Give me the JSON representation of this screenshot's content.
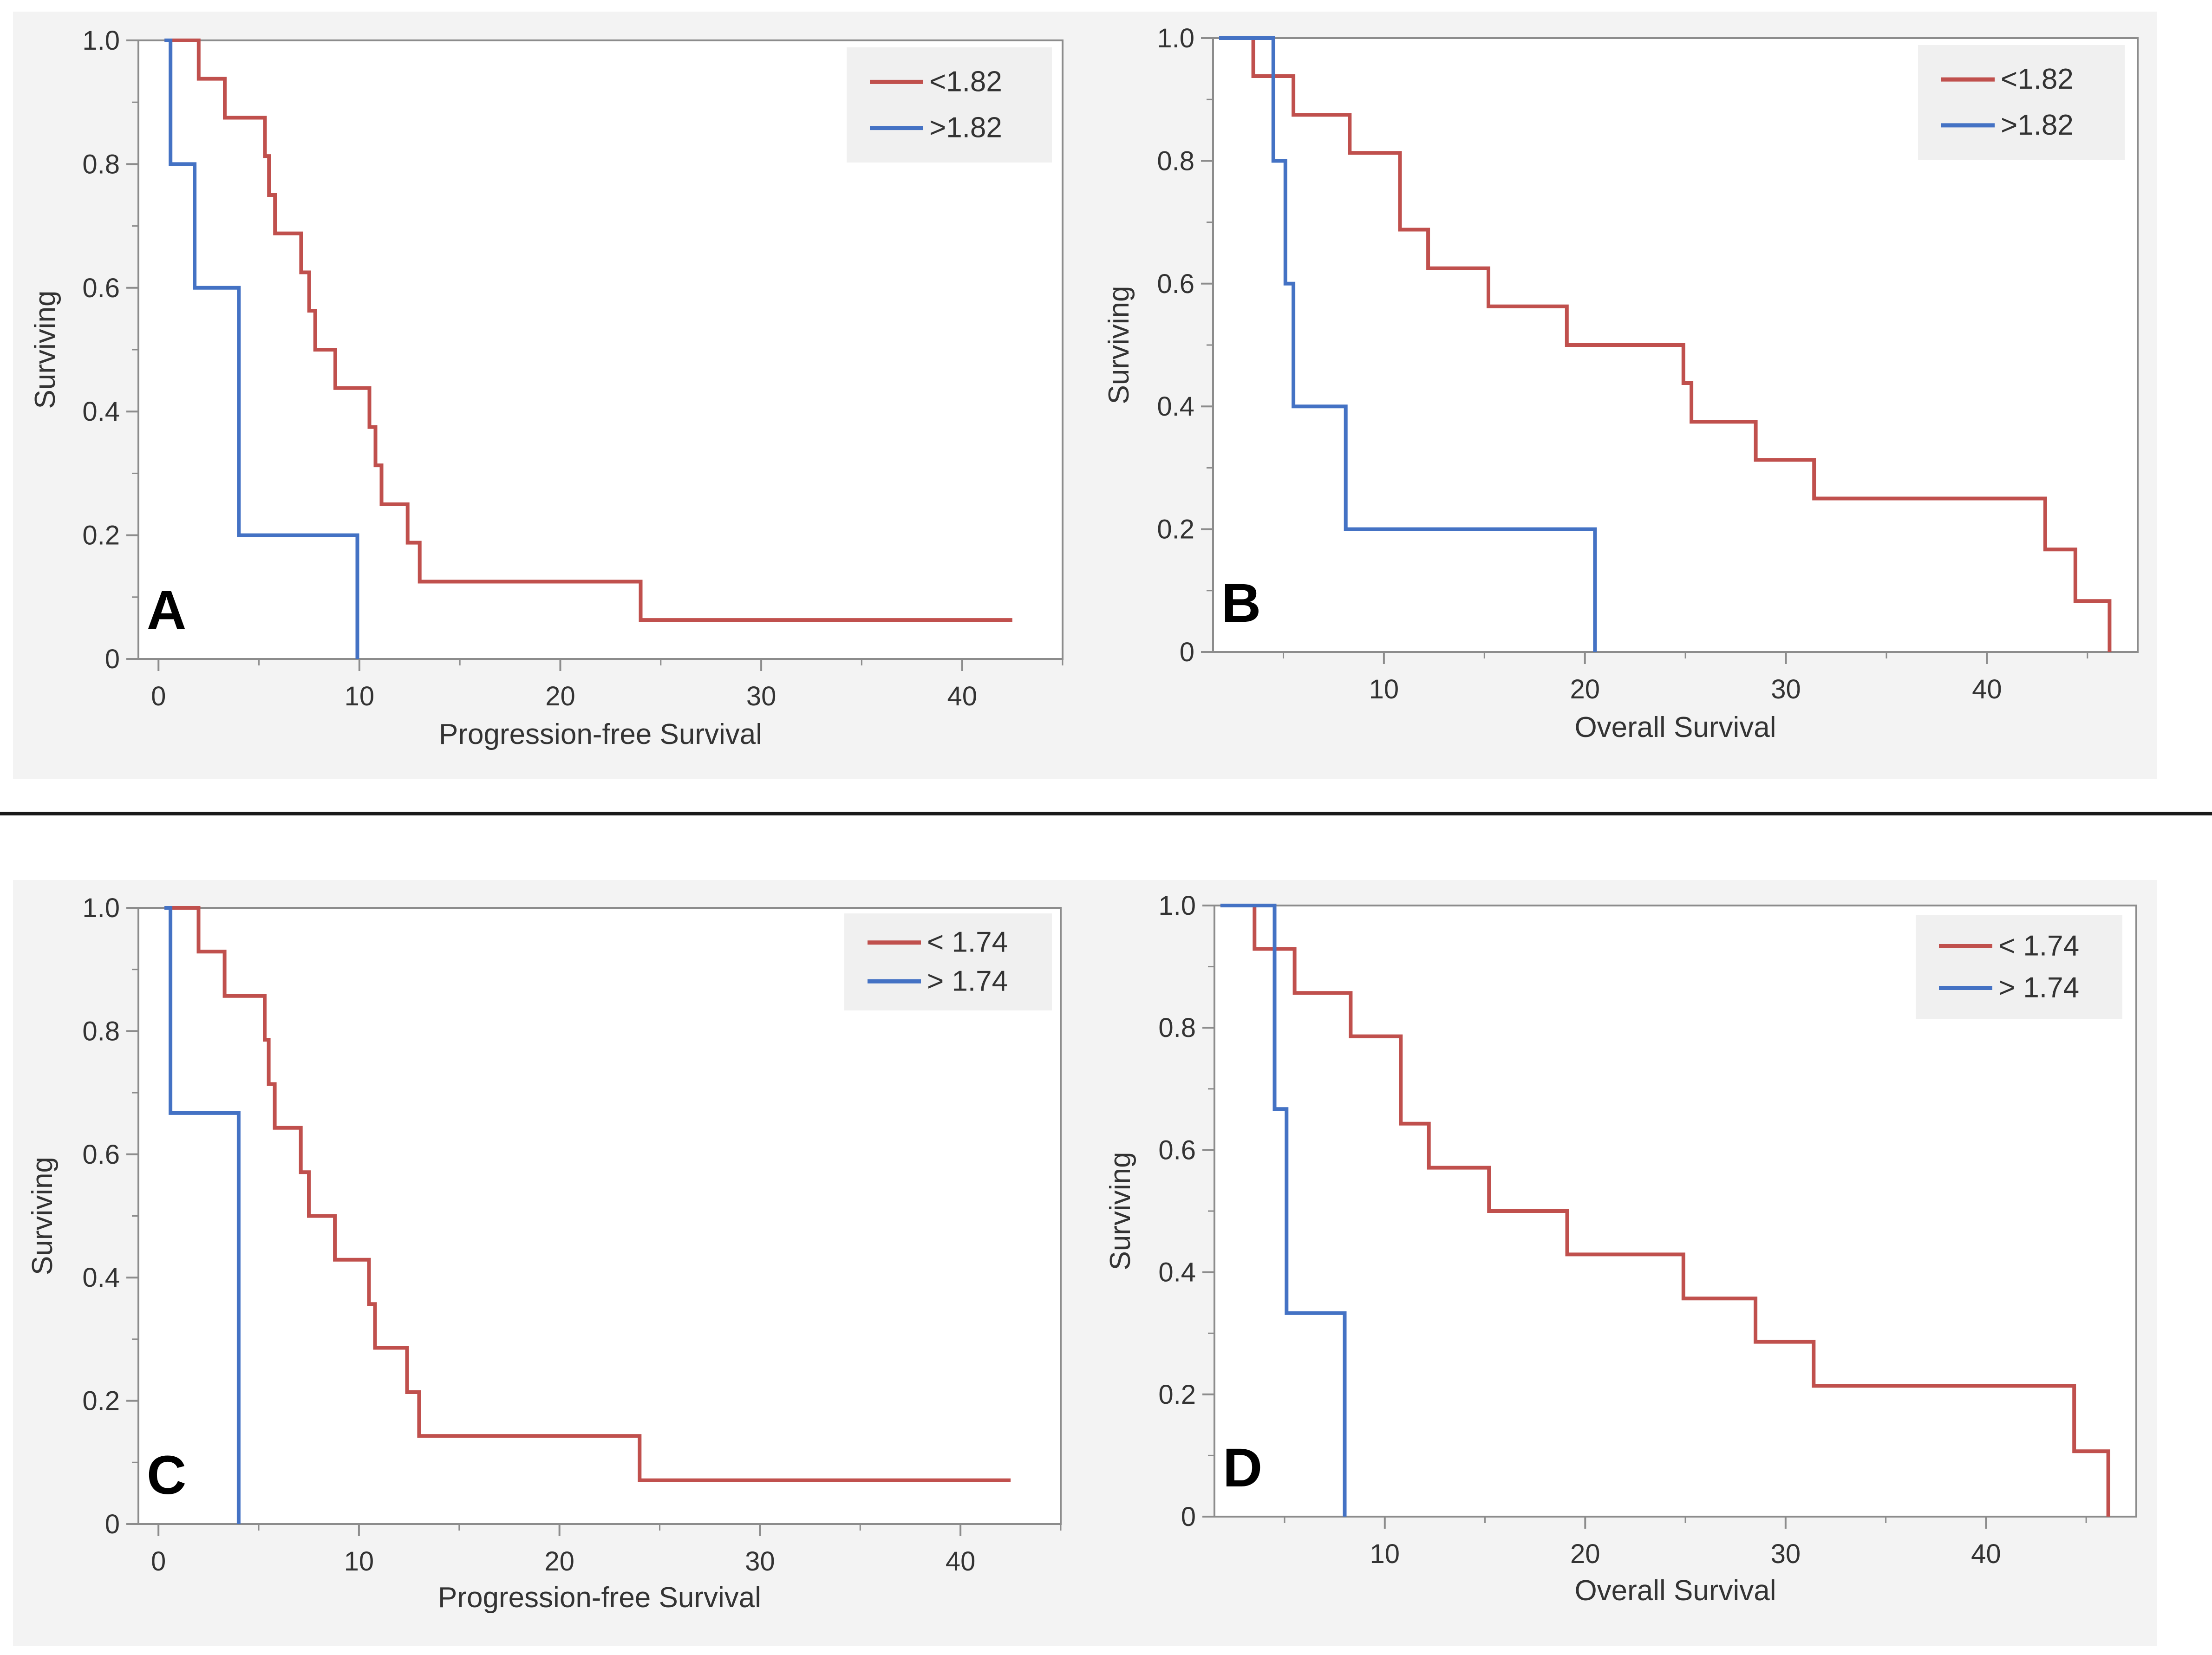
{
  "colors": {
    "low": "#c0504d",
    "high": "#4472c4",
    "axis": "#8c8c8c",
    "text": "#333333"
  },
  "chart_data": [
    {
      "type": "line",
      "panel": "A",
      "xlabel": "Progression-free Survival",
      "ylabel": "Surviving",
      "xlim": [
        -1,
        45
      ],
      "ylim": [
        0,
        1
      ],
      "xticks": [
        0,
        10,
        20,
        30,
        40
      ],
      "yticks": [
        0,
        0.2,
        0.4,
        0.6,
        0.8,
        1.0
      ],
      "ytick_labels": [
        "0",
        "0.2",
        "0.4",
        "0.6",
        "0.8",
        "1.0"
      ],
      "legend_position": "top-right",
      "series": [
        {
          "name": "<1.82",
          "color_key": "low",
          "x": [
            0.3,
            2,
            3.3,
            5.3,
            5.5,
            5.8,
            7.1,
            7.5,
            7.8,
            8.8,
            10.5,
            10.8,
            11.1,
            12.4,
            13,
            24,
            42.5
          ],
          "y": [
            1.0,
            0.938,
            0.875,
            0.813,
            0.75,
            0.688,
            0.625,
            0.563,
            0.5,
            0.438,
            0.375,
            0.313,
            0.25,
            0.188,
            0.125,
            0.063,
            0.063
          ]
        },
        {
          "name": ">1.82",
          "color_key": "high",
          "x": [
            0.3,
            0.6,
            1.8,
            4,
            9.9,
            9.9
          ],
          "y": [
            1.0,
            0.8,
            0.6,
            0.2,
            0.0,
            0.0
          ]
        }
      ]
    },
    {
      "type": "line",
      "panel": "B",
      "xlabel": "Overall Survival",
      "ylabel": "Surviving",
      "xlim": [
        1.5,
        47.5
      ],
      "ylim": [
        0,
        1
      ],
      "xticks": [
        10,
        20,
        30,
        40
      ],
      "yticks": [
        0,
        0.2,
        0.4,
        0.6,
        0.8,
        1.0
      ],
      "ytick_labels": [
        "0",
        "0.2",
        "0.4",
        "0.6",
        "0.8",
        "1.0"
      ],
      "legend_position": "top-right",
      "series": [
        {
          "name": "<1.82",
          "color_key": "low",
          "x": [
            1.8,
            3.5,
            5.5,
            8.3,
            10.8,
            12.2,
            15.2,
            19.1,
            24.9,
            25.3,
            28.5,
            31.4,
            42.9,
            44.4,
            46.1,
            46.1
          ],
          "y": [
            1.0,
            0.938,
            0.875,
            0.813,
            0.688,
            0.625,
            0.563,
            0.5,
            0.438,
            0.375,
            0.313,
            0.25,
            0.167,
            0.083,
            0.0,
            0.0
          ]
        },
        {
          "name": ">1.82",
          "color_key": "high",
          "x": [
            1.8,
            4.5,
            5.1,
            5.5,
            8.1,
            20.5,
            20.5
          ],
          "y": [
            1.0,
            0.8,
            0.6,
            0.4,
            0.2,
            0.0,
            0.0
          ]
        }
      ]
    },
    {
      "type": "line",
      "panel": "C",
      "xlabel": "Progression-free Survival",
      "ylabel": "Surviving",
      "xlim": [
        -1,
        45
      ],
      "ylim": [
        0,
        1
      ],
      "xticks": [
        0,
        10,
        20,
        30,
        40
      ],
      "yticks": [
        0,
        0.2,
        0.4,
        0.6,
        0.8,
        1.0
      ],
      "ytick_labels": [
        "0",
        "0.2",
        "0.4",
        "0.6",
        "0.8",
        "1.0"
      ],
      "legend_position": "top-right",
      "series": [
        {
          "name": "< 1.74",
          "color_key": "low",
          "x": [
            0.3,
            2,
            3.3,
            5.3,
            5.5,
            5.8,
            7.1,
            7.5,
            8.8,
            10.5,
            10.8,
            12.4,
            13,
            24,
            42.5
          ],
          "y": [
            1.0,
            0.929,
            0.857,
            0.786,
            0.714,
            0.643,
            0.571,
            0.5,
            0.429,
            0.357,
            0.286,
            0.214,
            0.143,
            0.071,
            0.071
          ]
        },
        {
          "name": "> 1.74",
          "color_key": "high",
          "x": [
            0.3,
            0.6,
            4,
            4
          ],
          "y": [
            1.0,
            0.667,
            0.0,
            0.0
          ]
        }
      ]
    },
    {
      "type": "line",
      "panel": "D",
      "xlabel": "Overall Survival",
      "ylabel": "Surviving",
      "xlim": [
        1.5,
        47.5
      ],
      "ylim": [
        0,
        1
      ],
      "xticks": [
        10,
        20,
        30,
        40
      ],
      "yticks": [
        0,
        0.2,
        0.4,
        0.6,
        0.8,
        1.0
      ],
      "ytick_labels": [
        "0",
        "0.2",
        "0.4",
        "0.6",
        "0.8",
        "1.0"
      ],
      "legend_position": "top-right",
      "series": [
        {
          "name": "< 1.74",
          "color_key": "low",
          "x": [
            1.8,
            3.5,
            5.5,
            8.3,
            10.8,
            12.2,
            15.2,
            19.1,
            24.9,
            28.5,
            31.4,
            44.4,
            46.1,
            46.1
          ],
          "y": [
            1.0,
            0.929,
            0.857,
            0.786,
            0.643,
            0.571,
            0.5,
            0.429,
            0.357,
            0.286,
            0.214,
            0.107,
            0.0,
            0.0
          ]
        },
        {
          "name": "> 1.74",
          "color_key": "high",
          "x": [
            1.8,
            4.5,
            5.1,
            8,
            8
          ],
          "y": [
            1.0,
            0.667,
            0.333,
            0.0,
            0.0
          ]
        }
      ]
    }
  ]
}
